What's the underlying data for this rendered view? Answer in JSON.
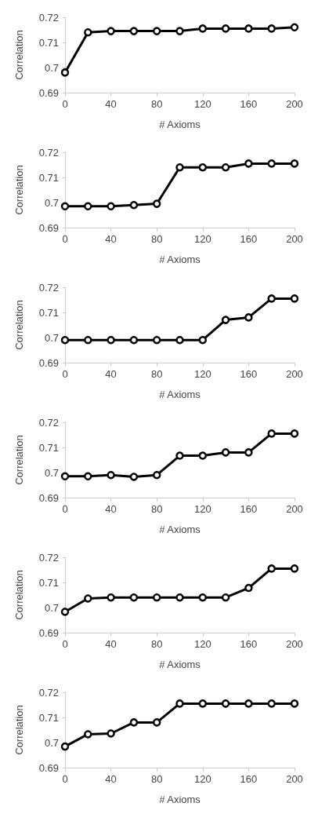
{
  "chart_data": [
    {
      "type": "line",
      "xlabel": "# Axioms",
      "ylabel": "Correlation",
      "x": [
        0,
        20,
        40,
        60,
        80,
        100,
        120,
        140,
        160,
        180,
        200
      ],
      "series": [
        {
          "color": "#000000",
          "values": [
            0.698,
            0.714,
            0.7145,
            0.7145,
            0.7145,
            0.7145,
            0.7155,
            0.7155,
            0.7155,
            0.7155,
            0.716
          ]
        }
      ],
      "xlim": [
        0,
        200
      ],
      "ylim": [
        0.69,
        0.72
      ],
      "xticks": [
        0,
        40,
        80,
        120,
        160,
        200
      ],
      "yticks": [
        0.69,
        0.7,
        0.71,
        0.72
      ],
      "marker": "circle",
      "line_style": "solid"
    },
    {
      "type": "line",
      "xlabel": "# Axioms",
      "ylabel": "Correlation",
      "x": [
        0,
        20,
        40,
        60,
        80,
        100,
        120,
        140,
        160,
        180,
        200
      ],
      "series": [
        {
          "color": "#000000",
          "values": [
            0.6985,
            0.6985,
            0.6985,
            0.699,
            0.6995,
            0.714,
            0.714,
            0.714,
            0.7155,
            0.7155,
            0.7155
          ]
        }
      ],
      "xlim": [
        0,
        200
      ],
      "ylim": [
        0.69,
        0.72
      ],
      "xticks": [
        0,
        40,
        80,
        120,
        160,
        200
      ],
      "yticks": [
        0.69,
        0.7,
        0.71,
        0.72
      ],
      "marker": "circle",
      "line_style": "solid"
    },
    {
      "type": "line",
      "xlabel": "# Axioms",
      "ylabel": "Correlation",
      "x": [
        0,
        20,
        40,
        60,
        80,
        100,
        120,
        140,
        160,
        180,
        200
      ],
      "series": [
        {
          "color": "#000000",
          "values": [
            0.699,
            0.699,
            0.699,
            0.699,
            0.699,
            0.699,
            0.699,
            0.707,
            0.708,
            0.7155,
            0.7155
          ]
        }
      ],
      "xlim": [
        0,
        200
      ],
      "ylim": [
        0.69,
        0.72
      ],
      "xticks": [
        0,
        40,
        80,
        120,
        160,
        200
      ],
      "yticks": [
        0.69,
        0.7,
        0.71,
        0.72
      ],
      "marker": "circle",
      "line_style": "solid"
    },
    {
      "type": "line",
      "xlabel": "# Axioms",
      "ylabel": "Correlation",
      "x": [
        0,
        20,
        40,
        60,
        80,
        100,
        120,
        140,
        160,
        180,
        200
      ],
      "series": [
        {
          "color": "#000000",
          "values": [
            0.6985,
            0.6985,
            0.699,
            0.6983,
            0.699,
            0.7067,
            0.7067,
            0.708,
            0.708,
            0.7155,
            0.7155
          ]
        }
      ],
      "xlim": [
        0,
        200
      ],
      "ylim": [
        0.69,
        0.72
      ],
      "xticks": [
        0,
        40,
        80,
        120,
        160,
        200
      ],
      "yticks": [
        0.69,
        0.7,
        0.71,
        0.72
      ],
      "marker": "circle",
      "line_style": "solid"
    },
    {
      "type": "line",
      "xlabel": "# Axioms",
      "ylabel": "Correlation",
      "x": [
        0,
        20,
        40,
        60,
        80,
        100,
        120,
        140,
        160,
        180,
        200
      ],
      "series": [
        {
          "color": "#000000",
          "values": [
            0.6983,
            0.7036,
            0.704,
            0.704,
            0.704,
            0.704,
            0.704,
            0.704,
            0.7078,
            0.7155,
            0.7155
          ]
        }
      ],
      "xlim": [
        0,
        200
      ],
      "ylim": [
        0.69,
        0.72
      ],
      "xticks": [
        0,
        40,
        80,
        120,
        160,
        200
      ],
      "yticks": [
        0.69,
        0.7,
        0.71,
        0.72
      ],
      "marker": "circle",
      "line_style": "solid"
    },
    {
      "type": "line",
      "xlabel": "# Axioms",
      "ylabel": "Correlation",
      "x": [
        0,
        20,
        40,
        60,
        80,
        100,
        120,
        140,
        160,
        180,
        200
      ],
      "series": [
        {
          "color": "#000000",
          "values": [
            0.6984,
            0.7033,
            0.7036,
            0.708,
            0.708,
            0.7155,
            0.7155,
            0.7155,
            0.7155,
            0.7155,
            0.7155
          ]
        }
      ],
      "xlim": [
        0,
        200
      ],
      "ylim": [
        0.69,
        0.72
      ],
      "xticks": [
        0,
        40,
        80,
        120,
        160,
        200
      ],
      "yticks": [
        0.69,
        0.7,
        0.71,
        0.72
      ],
      "marker": "circle",
      "line_style": "solid"
    }
  ]
}
